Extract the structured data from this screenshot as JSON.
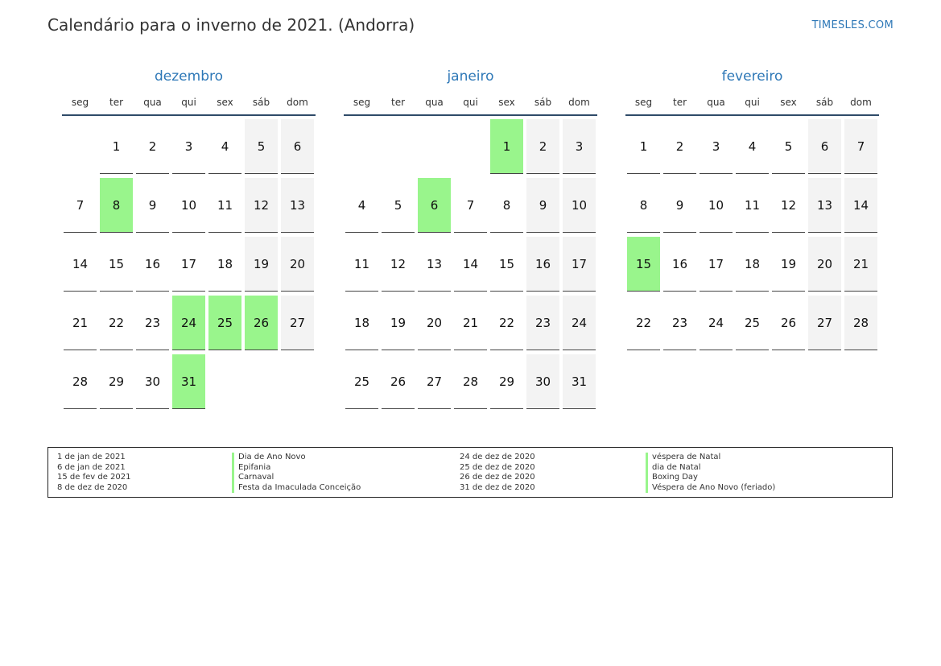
{
  "header": {
    "title": "Calendário para o inverno de 2021. (Andorra)",
    "brand": "TIMESLES.COM"
  },
  "weekdays": [
    "seg",
    "ter",
    "qua",
    "qui",
    "sex",
    "sáb",
    "dom"
  ],
  "colors": {
    "accent": "#2e78b7",
    "holiday": "#99f58c",
    "weekend": "#f3f3f3",
    "rule": "#2f4b68"
  },
  "months": [
    {
      "name": "dezembro",
      "start_offset": 1,
      "days": 31,
      "holidays": [
        8,
        24,
        25,
        26,
        31
      ]
    },
    {
      "name": "janeiro",
      "start_offset": 4,
      "days": 31,
      "holidays": [
        1,
        6
      ]
    },
    {
      "name": "fevereiro",
      "start_offset": 0,
      "days": 28,
      "holidays": [
        15
      ]
    }
  ],
  "legend": {
    "left": [
      {
        "date": "1 de jan de 2021",
        "name": "Dia de Ano Novo"
      },
      {
        "date": "6 de jan de 2021",
        "name": "Epifania"
      },
      {
        "date": "15 de fev de 2021",
        "name": "Carnaval"
      },
      {
        "date": "8 de dez de 2020",
        "name": "Festa da Imaculada Conceição"
      }
    ],
    "right": [
      {
        "date": "24 de dez de 2020",
        "name": "véspera de Natal"
      },
      {
        "date": "25 de dez de 2020",
        "name": "dia de Natal"
      },
      {
        "date": "26 de dez de 2020",
        "name": "Boxing Day"
      },
      {
        "date": "31 de dez de 2020",
        "name": "Véspera de Ano Novo (feriado)"
      }
    ]
  }
}
